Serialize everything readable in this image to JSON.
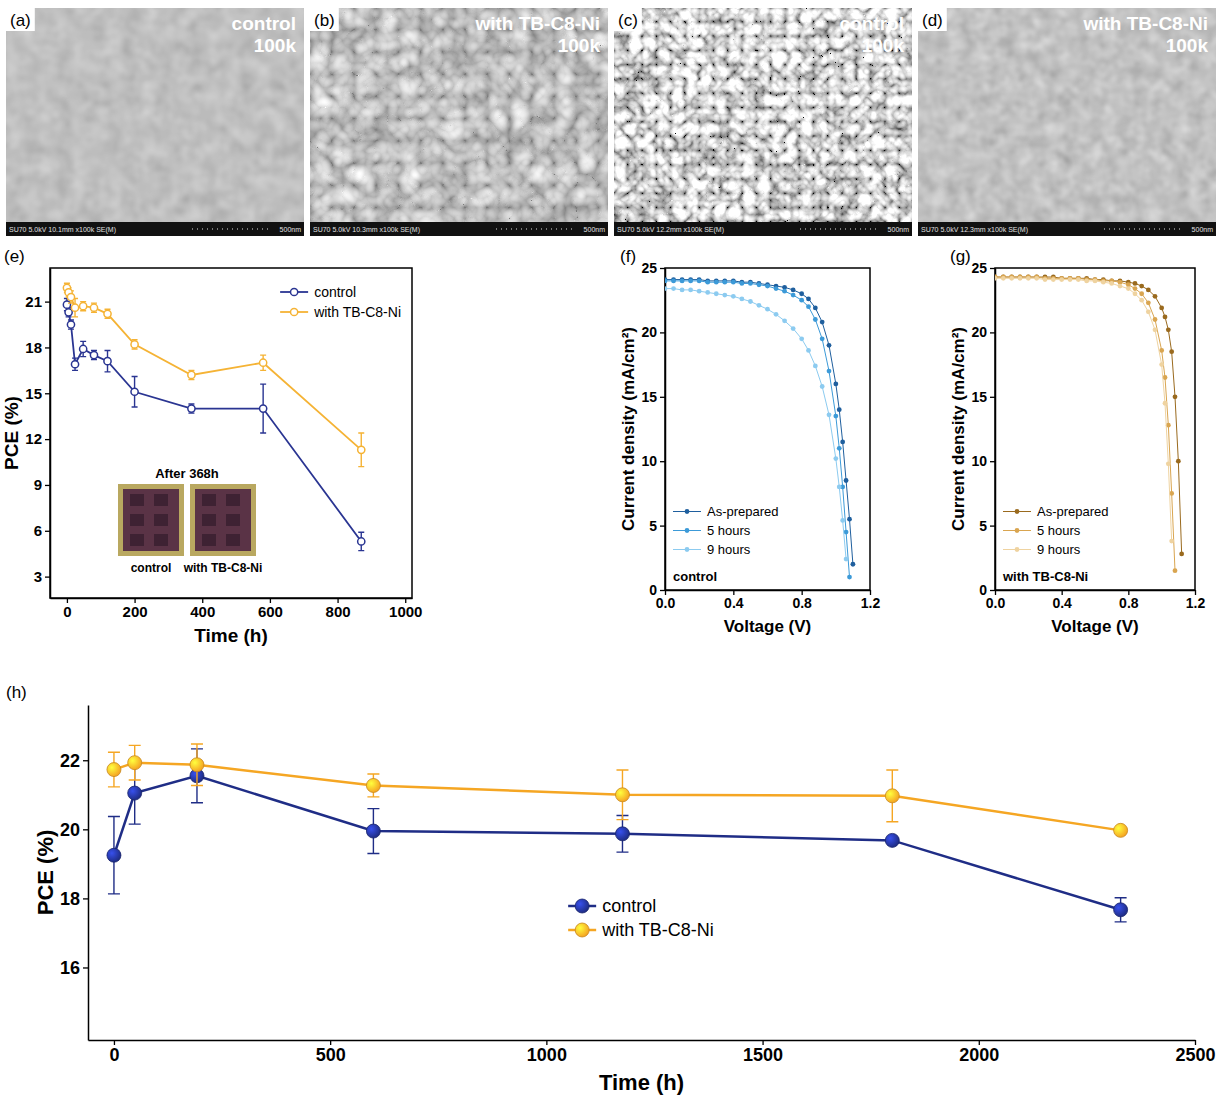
{
  "panels": [
    {
      "label": "(a)",
      "title": [
        "control",
        "100k"
      ],
      "info": "SU70 5.0kV 10.1mm x100k SE(M)",
      "scale": "500nm"
    },
    {
      "label": "(b)",
      "title": [
        "with TB-C8-Ni",
        "100k"
      ],
      "info": "SU70 5.0kV 10.3mm x100k SE(M)",
      "scale": "500nm"
    },
    {
      "label": "(c)",
      "title": [
        "control",
        "100k"
      ],
      "info": "SU70 5.0kV 12.2mm x100k SE(M)",
      "scale": "500nm"
    },
    {
      "label": "(d)",
      "title": [
        "with TB-C8-Ni",
        "100k"
      ],
      "info": "SU70 5.0kV 12.3mm x100k SE(M)",
      "scale": "500nm"
    }
  ],
  "chart_data": [
    {
      "panel": "(e)",
      "type": "line",
      "x_label": "Time (h)",
      "y_label": "PCE (%)",
      "xlim": [
        -50,
        1020
      ],
      "xticks": [
        0,
        200,
        400,
        600,
        800,
        1000
      ],
      "ylim": [
        1.6,
        23.2
      ],
      "yticks": [
        3,
        6,
        9,
        12,
        15,
        18,
        21
      ],
      "legend": "top-right",
      "marker": "open-circle",
      "line_style": "solid",
      "x": [
        0,
        5,
        12,
        24,
        48,
        80,
        120,
        200,
        368,
        580,
        870
      ],
      "series": [
        {
          "name": "control",
          "color": "#2a3592",
          "values": [
            20.8,
            20.3,
            19.5,
            16.9,
            17.9,
            17.5,
            17.1,
            15.1,
            14.0,
            14.0,
            5.3
          ],
          "errors": [
            0.4,
            0.3,
            0.3,
            0.4,
            0.5,
            0.3,
            0.7,
            1.0,
            0.3,
            1.6,
            0.6
          ]
        },
        {
          "name": "with TB-C8-Ni",
          "color": "#f5b335",
          "values": [
            21.9,
            21.6,
            21.3,
            20.6,
            20.7,
            20.6,
            20.2,
            18.2,
            16.2,
            17.0,
            11.3
          ],
          "errors": [
            0.3,
            0.3,
            0.4,
            0.6,
            0.3,
            0.3,
            0.3,
            0.3,
            0.3,
            0.5,
            1.1
          ]
        }
      ],
      "inset": {
        "title": "After 368h",
        "labels": [
          "control",
          "with TB-C8-Ni"
        ]
      }
    },
    {
      "panel": "(f)",
      "type": "line",
      "x_label": "Voltage (V)",
      "y_label": "Current density (mA/cm²)",
      "xlim": [
        0,
        1.2
      ],
      "xticks": [
        {
          "value": 0,
          "label": "0.0"
        },
        0.4,
        0.8,
        1.2
      ],
      "ylim": [
        0,
        25
      ],
      "yticks": [
        0,
        5,
        10,
        15,
        20,
        25
      ],
      "legend": "bottom-left",
      "marker": "circle",
      "line_style": "solid",
      "annotation": "control",
      "x": [
        0,
        0.05,
        0.1,
        0.15,
        0.2,
        0.25,
        0.3,
        0.35,
        0.4,
        0.45,
        0.5,
        0.55,
        0.6,
        0.65,
        0.7,
        0.75,
        0.8,
        0.84,
        0.88,
        0.92,
        0.96,
        1.0,
        1.02,
        1.04,
        1.06,
        1.08,
        1.1,
        1.12
      ],
      "series": [
        {
          "name": "As-prepared",
          "color": "#1f5f9e",
          "values": [
            24.1,
            24.1,
            24.1,
            24.1,
            24.1,
            24.0,
            24.0,
            24.0,
            24.0,
            23.9,
            23.9,
            23.8,
            23.7,
            23.6,
            23.5,
            23.3,
            23.0,
            22.6,
            21.9,
            20.8,
            19.0,
            16.0,
            14.0,
            11.5,
            8.5,
            5.5,
            2.0,
            null
          ]
        },
        {
          "name": "5 hours",
          "color": "#3c9ad8",
          "values": [
            24.0,
            24.0,
            24.0,
            24.0,
            24.0,
            23.9,
            23.9,
            23.9,
            23.9,
            23.8,
            23.8,
            23.7,
            23.6,
            23.4,
            23.2,
            22.9,
            22.5,
            22.0,
            21.0,
            19.5,
            17.0,
            13.5,
            11.0,
            8.0,
            4.5,
            1.0,
            null,
            null
          ]
        },
        {
          "name": "9 hours",
          "color": "#8ccbf0",
          "values": [
            23.4,
            23.4,
            23.3,
            23.3,
            23.2,
            23.1,
            23.0,
            22.9,
            22.8,
            22.6,
            22.4,
            22.1,
            21.8,
            21.4,
            20.9,
            20.3,
            19.5,
            18.6,
            17.4,
            15.8,
            13.6,
            10.2,
            8.0,
            5.4,
            2.4,
            null,
            null,
            null
          ]
        }
      ]
    },
    {
      "panel": "(g)",
      "type": "line",
      "x_label": "Voltage (V)",
      "y_label": "Current density (mA/cm²)",
      "xlim": [
        0,
        1.2
      ],
      "xticks": [
        {
          "value": 0,
          "label": "0.0"
        },
        0.4,
        0.8,
        1.2
      ],
      "ylim": [
        0,
        25
      ],
      "yticks": [
        0,
        5,
        10,
        15,
        20,
        25
      ],
      "legend": "bottom-left",
      "marker": "circle",
      "line_style": "solid",
      "annotation": "with TB-C8-Ni",
      "x": [
        0,
        0.05,
        0.1,
        0.15,
        0.2,
        0.25,
        0.3,
        0.35,
        0.4,
        0.45,
        0.5,
        0.55,
        0.6,
        0.65,
        0.7,
        0.75,
        0.8,
        0.84,
        0.88,
        0.92,
        0.96,
        1.0,
        1.02,
        1.04,
        1.06,
        1.08,
        1.1,
        1.12
      ],
      "series": [
        {
          "name": "As-prepared",
          "color": "#9a6a1e",
          "values": [
            24.3,
            24.3,
            24.3,
            24.3,
            24.3,
            24.3,
            24.3,
            24.3,
            24.2,
            24.2,
            24.2,
            24.2,
            24.1,
            24.1,
            24.0,
            24.0,
            23.9,
            23.8,
            23.6,
            23.3,
            22.8,
            21.9,
            21.2,
            20.2,
            18.5,
            15.0,
            10.0,
            2.8
          ]
        },
        {
          "name": "5 hours",
          "color": "#d9a550",
          "values": [
            24.3,
            24.3,
            24.3,
            24.3,
            24.3,
            24.3,
            24.2,
            24.2,
            24.2,
            24.2,
            24.2,
            24.1,
            24.1,
            24.0,
            24.0,
            23.9,
            23.7,
            23.4,
            23.0,
            22.3,
            21.0,
            18.6,
            16.5,
            12.8,
            7.5,
            1.5,
            null,
            null
          ]
        },
        {
          "name": "9 hours",
          "color": "#efd3a0",
          "values": [
            24.2,
            24.2,
            24.2,
            24.2,
            24.2,
            24.2,
            24.1,
            24.1,
            24.1,
            24.1,
            24.1,
            24.0,
            24.0,
            23.9,
            23.8,
            23.6,
            23.4,
            23.0,
            22.5,
            21.6,
            20.2,
            17.5,
            14.5,
            9.8,
            3.8,
            null,
            null,
            null
          ]
        }
      ]
    },
    {
      "panel": "(h)",
      "type": "line",
      "x_label": "Time (h)",
      "y_label": "PCE (%)",
      "xlim": [
        -60,
        2500
      ],
      "xticks": [
        0,
        500,
        1000,
        1500,
        2000,
        2500
      ],
      "ylim": [
        13.9,
        23.6
      ],
      "yticks": [
        16,
        18,
        20,
        22
      ],
      "legend": "center",
      "marker": "sphere",
      "line_style": "solid",
      "x": [
        0,
        48,
        192,
        600,
        1176,
        1800,
        2328
      ],
      "series": [
        {
          "name": "control",
          "color": "#1f2d86",
          "values": [
            19.25,
            21.05,
            21.55,
            19.95,
            19.87,
            19.68,
            17.67
          ],
          "errors": [
            1.12,
            0.9,
            0.78,
            0.65,
            0.53,
            0.08,
            0.35
          ]
        },
        {
          "name": "with TB-C8-Ni",
          "color": "#f5a623",
          "values": [
            21.73,
            21.93,
            21.87,
            21.27,
            21.0,
            20.97,
            19.97
          ],
          "errors": [
            0.5,
            0.5,
            0.6,
            0.33,
            0.72,
            0.75,
            0.08
          ]
        }
      ]
    }
  ]
}
